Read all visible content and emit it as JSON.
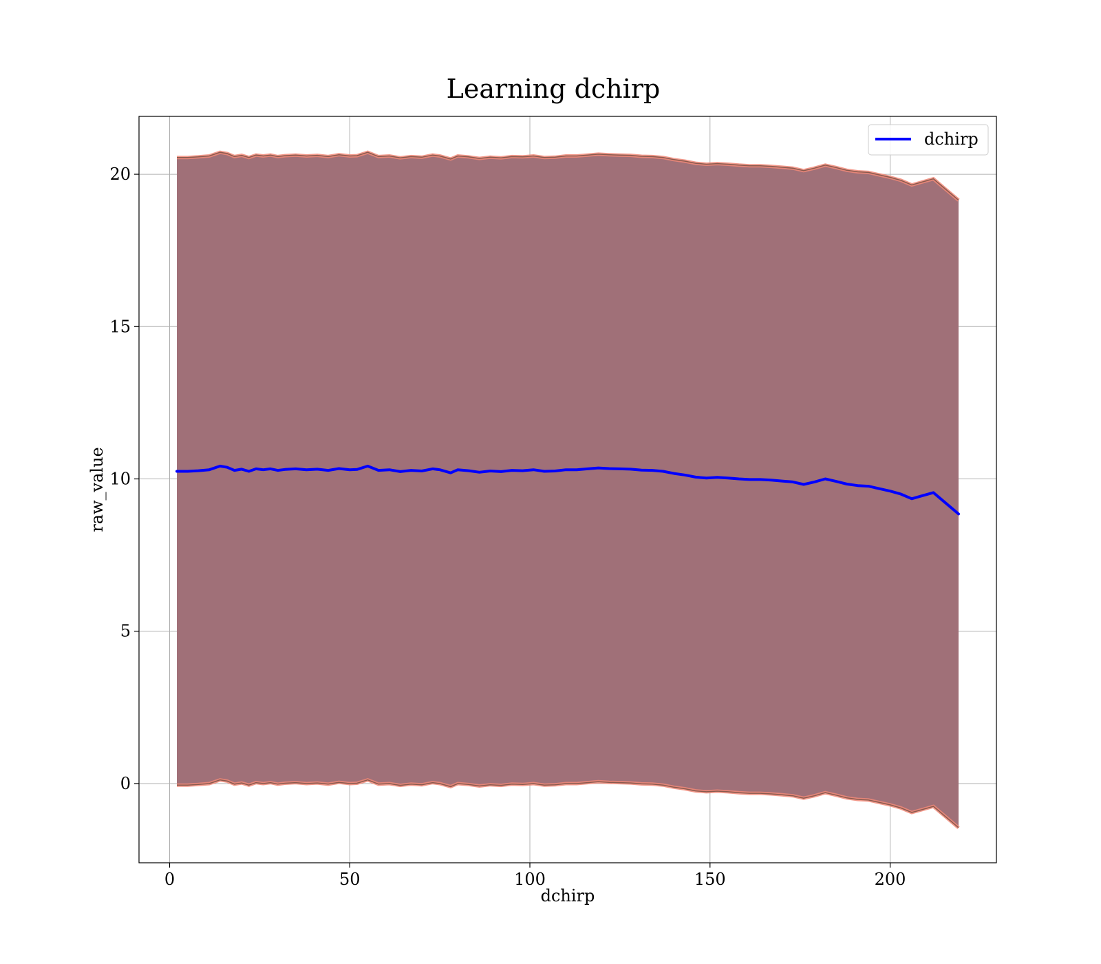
{
  "chart_data": {
    "type": "line",
    "title": "Learning dchirp",
    "xlabel": "dchirp",
    "ylabel": "raw_value",
    "xlim": [
      -8.5,
      229.5
    ],
    "ylim": [
      -2.6,
      21.9
    ],
    "xticks": [
      0,
      50,
      100,
      150,
      200
    ],
    "yticks": [
      0,
      5,
      10,
      15,
      20
    ],
    "grid": true,
    "legend_position": "top-right",
    "colors": {
      "line": "#0000ff",
      "band_fill": "#a07078",
      "band_edge": "#f08878"
    },
    "series": [
      {
        "name": "dchirp",
        "x": [
          2,
          5,
          8,
          11,
          14,
          16,
          18,
          20,
          22,
          24,
          26,
          28,
          30,
          32,
          35,
          38,
          41,
          44,
          47,
          50,
          52,
          55,
          58,
          61,
          64,
          67,
          70,
          73,
          75,
          78,
          80,
          83,
          86,
          89,
          92,
          95,
          98,
          101,
          104,
          107,
          110,
          113,
          116,
          119,
          122,
          125,
          128,
          131,
          134,
          137,
          140,
          143,
          146,
          149,
          152,
          155,
          158,
          161,
          164,
          167,
          170,
          173,
          176,
          179,
          182,
          185,
          188,
          191,
          194,
          197,
          200,
          203,
          206,
          209,
          212,
          215,
          219
        ],
        "y": [
          10.25,
          10.25,
          10.27,
          10.3,
          10.42,
          10.38,
          10.28,
          10.32,
          10.25,
          10.33,
          10.3,
          10.33,
          10.28,
          10.31,
          10.33,
          10.3,
          10.32,
          10.28,
          10.34,
          10.3,
          10.31,
          10.42,
          10.28,
          10.3,
          10.24,
          10.28,
          10.26,
          10.33,
          10.3,
          10.2,
          10.3,
          10.27,
          10.22,
          10.26,
          10.24,
          10.28,
          10.27,
          10.3,
          10.25,
          10.26,
          10.3,
          10.3,
          10.33,
          10.36,
          10.34,
          10.33,
          10.32,
          10.29,
          10.28,
          10.25,
          10.18,
          10.13,
          10.06,
          10.03,
          10.05,
          10.03,
          10.0,
          9.98,
          9.98,
          9.96,
          9.93,
          9.9,
          9.82,
          9.9,
          10.0,
          9.92,
          9.83,
          9.78,
          9.76,
          9.68,
          9.6,
          9.5,
          9.35,
          9.45,
          9.55,
          9.25,
          8.85
        ]
      }
    ],
    "band": {
      "upper": [
        20.55,
        20.55,
        20.57,
        20.6,
        20.72,
        20.68,
        20.58,
        20.62,
        20.55,
        20.63,
        20.6,
        20.63,
        20.58,
        20.61,
        20.63,
        20.6,
        20.62,
        20.58,
        20.64,
        20.6,
        20.61,
        20.72,
        20.58,
        20.6,
        20.54,
        20.58,
        20.56,
        20.63,
        20.6,
        20.5,
        20.6,
        20.57,
        20.52,
        20.56,
        20.54,
        20.58,
        20.57,
        20.6,
        20.55,
        20.56,
        20.6,
        20.6,
        20.63,
        20.66,
        20.64,
        20.63,
        20.62,
        20.59,
        20.58,
        20.55,
        20.48,
        20.43,
        20.36,
        20.33,
        20.35,
        20.33,
        20.3,
        20.28,
        20.28,
        20.26,
        20.23,
        20.2,
        20.12,
        20.2,
        20.3,
        20.22,
        20.13,
        20.08,
        20.06,
        19.98,
        19.9,
        19.8,
        19.65,
        19.75,
        19.85,
        19.55,
        19.15
      ],
      "lower": [
        -0.05,
        -0.05,
        -0.03,
        0.0,
        0.12,
        0.08,
        -0.02,
        0.02,
        -0.05,
        0.03,
        0.0,
        0.03,
        -0.02,
        0.01,
        0.03,
        0.0,
        0.02,
        -0.02,
        0.04,
        0.0,
        0.01,
        0.12,
        -0.02,
        0.0,
        -0.06,
        -0.02,
        -0.04,
        0.03,
        0.0,
        -0.1,
        0.0,
        -0.03,
        -0.08,
        -0.04,
        -0.06,
        -0.02,
        -0.03,
        0.0,
        -0.05,
        -0.04,
        0.0,
        0.0,
        0.03,
        0.06,
        0.04,
        0.03,
        0.02,
        -0.01,
        -0.02,
        -0.05,
        -0.12,
        -0.17,
        -0.24,
        -0.27,
        -0.25,
        -0.27,
        -0.3,
        -0.32,
        -0.32,
        -0.34,
        -0.37,
        -0.4,
        -0.48,
        -0.4,
        -0.3,
        -0.38,
        -0.47,
        -0.52,
        -0.54,
        -0.62,
        -0.7,
        -0.8,
        -0.95,
        -0.85,
        -0.75,
        -1.05,
        -1.45
      ]
    }
  }
}
